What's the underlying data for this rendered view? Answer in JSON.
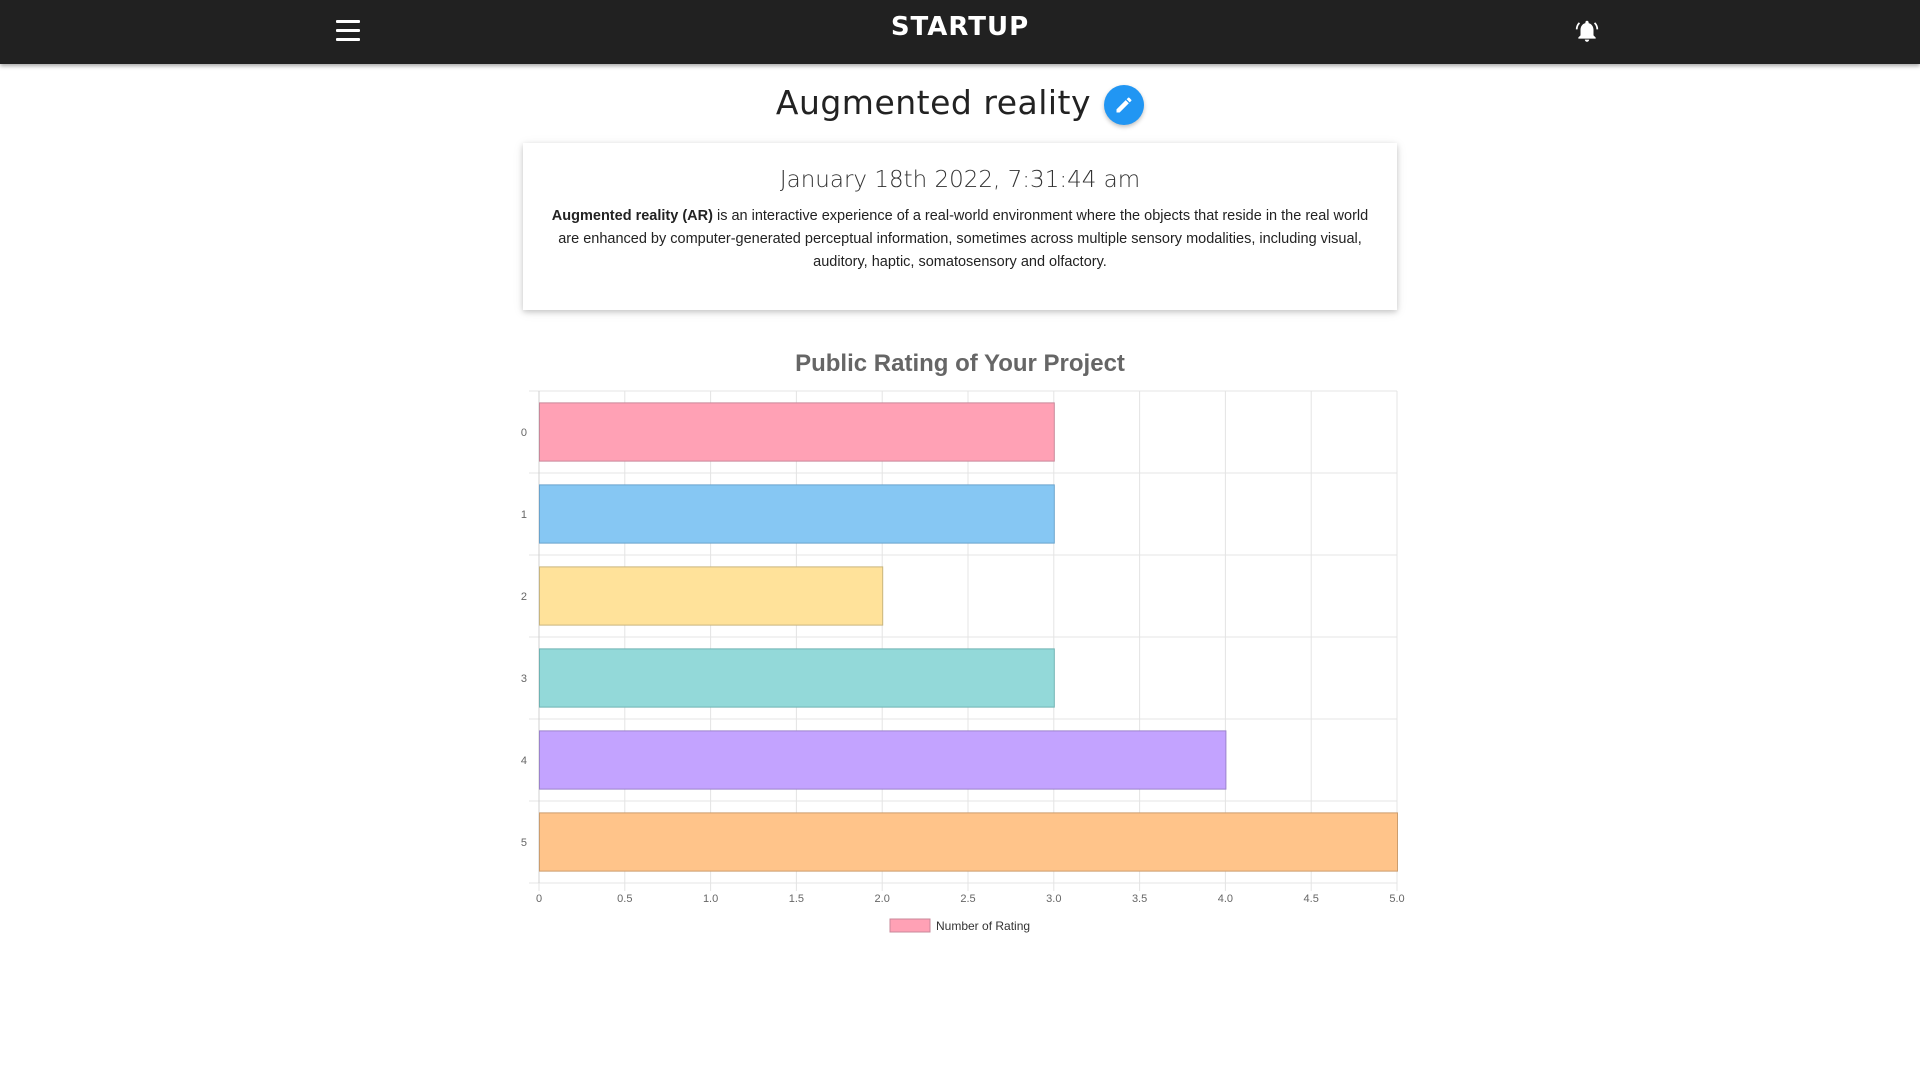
{
  "header": {
    "brand": "STARTUP",
    "menu_icon": "hamburger-menu-icon",
    "notification_icon": "bell-icon"
  },
  "project": {
    "title": "Augmented reality",
    "edit_icon": "pencil-icon",
    "date": "January 18th 2022, 7:31:44 am",
    "description_bold": "Augmented reality (AR)",
    "description_rest": " is an interactive experience of a real-world environment where the objects that reside in the real world are enhanced by computer-generated perceptual information, sometimes across multiple sensory modalities, including visual, auditory, haptic, somatosensory and olfactory."
  },
  "chart_data": {
    "type": "bar",
    "orientation": "horizontal",
    "title": "Public Rating of Your Project",
    "categories": [
      "0",
      "1",
      "2",
      "3",
      "4",
      "5"
    ],
    "series": [
      {
        "name": "Number of Rating",
        "values": [
          3,
          3,
          2,
          3,
          4,
          5
        ]
      }
    ],
    "xlim": [
      0,
      5
    ],
    "x_ticks": [
      "0",
      "0.5",
      "1.0",
      "1.5",
      "2.0",
      "2.5",
      "3.0",
      "3.5",
      "4.0",
      "4.5",
      "5.0"
    ],
    "grid": true,
    "legend_position": "bottom",
    "bar_colors": [
      "#ffa1b5",
      "#86c7f3",
      "#ffe29a",
      "#93d9d9",
      "#c3a3ff",
      "#ffc48a"
    ],
    "bar_border_colors": [
      "#c8889a",
      "#6aa3cc",
      "#c8b57e",
      "#6fb3b3",
      "#9b83cc",
      "#cc9d6e"
    ]
  }
}
